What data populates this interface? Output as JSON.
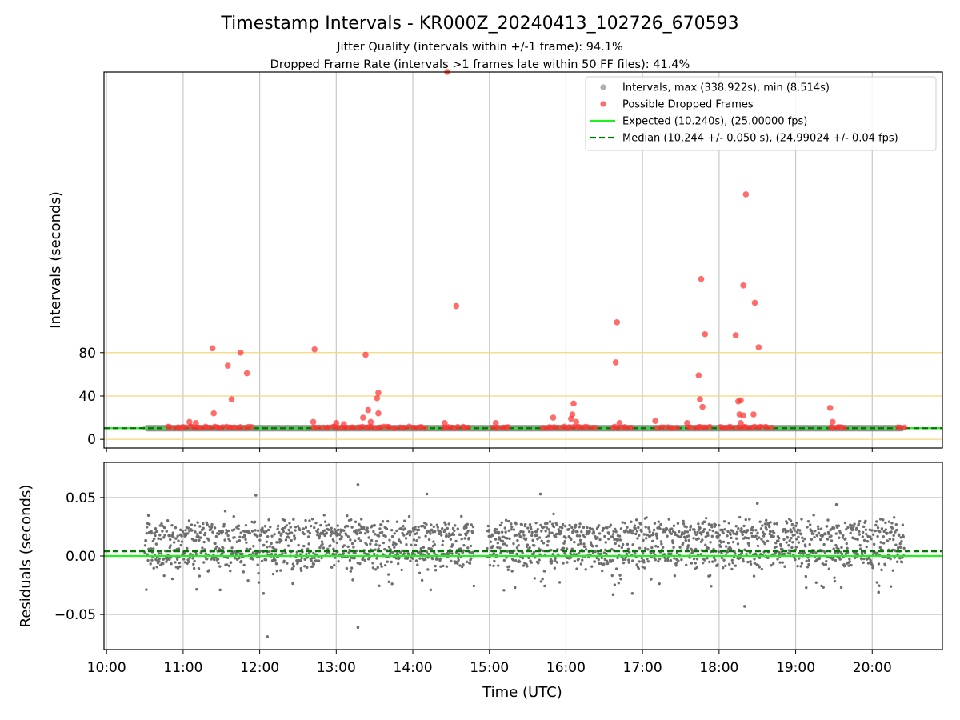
{
  "chart_data": [
    {
      "type": "scatter",
      "title": "Timestamp Intervals - KR000Z_20240413_102726_670593",
      "subtitle_lines": [
        "Jitter Quality (intervals within +/-1 frame): 94.1%",
        "Dropped Frame Rate (intervals >1 frames late within 50 FF files): 41.4%"
      ],
      "ylabel": "Intervals (seconds)",
      "x_axis": {
        "type": "time",
        "range": [
          "09:58",
          "20:55"
        ],
        "ticks": [
          "10:00",
          "11:00",
          "12:00",
          "13:00",
          "14:00",
          "15:00",
          "16:00",
          "17:00",
          "18:00",
          "19:00",
          "20:00"
        ]
      },
      "ylim": [
        -8,
        338.9
      ],
      "yticks": [
        0,
        40,
        80
      ],
      "grid": "vertical",
      "threshold_lines": [
        0,
        40,
        80
      ],
      "threshold_color": "#f3d77e",
      "legend": {
        "placement": "upper right",
        "entries": [
          {
            "label": "Intervals, max (338.922s), min (8.514s)",
            "kind": "marker",
            "color": "#a0a0a0"
          },
          {
            "label": "Possible Dropped Frames",
            "kind": "marker",
            "color": "#ff5555"
          },
          {
            "label": "Expected (10.240s), (25.00000 fps)",
            "kind": "line",
            "color": "#22ee22"
          },
          {
            "label": "Median (10.244 +/- 0.050 s), (24.99024 +/- 0.04 fps)",
            "kind": "dashed",
            "color": "#007700"
          }
        ]
      },
      "expected": 10.24,
      "median": 10.244,
      "interval_series": {
        "name": "Intervals",
        "start": "10:30",
        "end": "20:25",
        "level": 10.24,
        "color": "#7a7a7a"
      },
      "dropped_frames": [
        {
          "t": "11:23",
          "v": 84
        },
        {
          "t": "11:35",
          "v": 68
        },
        {
          "t": "11:38",
          "v": 37
        },
        {
          "t": "11:45",
          "v": 80
        },
        {
          "t": "11:50",
          "v": 61
        },
        {
          "t": "11:24",
          "v": 24
        },
        {
          "t": "11:05",
          "v": 16
        },
        {
          "t": "11:10",
          "v": 15
        },
        {
          "t": "12:43",
          "v": 83
        },
        {
          "t": "12:42",
          "v": 16
        },
        {
          "t": "13:00",
          "v": 15
        },
        {
          "t": "13:06",
          "v": 14
        },
        {
          "t": "13:23",
          "v": 78
        },
        {
          "t": "13:25",
          "v": 27
        },
        {
          "t": "13:33",
          "v": 43
        },
        {
          "t": "13:32",
          "v": 38
        },
        {
          "t": "13:33",
          "v": 24
        },
        {
          "t": "13:21",
          "v": 20
        },
        {
          "t": "13:27",
          "v": 16
        },
        {
          "t": "14:27",
          "v": 338.9
        },
        {
          "t": "14:34",
          "v": 123
        },
        {
          "t": "14:25",
          "v": 15
        },
        {
          "t": "15:05",
          "v": 15
        },
        {
          "t": "15:50",
          "v": 20
        },
        {
          "t": "16:06",
          "v": 33
        },
        {
          "t": "16:05",
          "v": 23
        },
        {
          "t": "16:04",
          "v": 19
        },
        {
          "t": "16:08",
          "v": 16
        },
        {
          "t": "16:40",
          "v": 108
        },
        {
          "t": "16:39",
          "v": 71
        },
        {
          "t": "16:42",
          "v": 15
        },
        {
          "t": "17:10",
          "v": 17
        },
        {
          "t": "17:35",
          "v": 15
        },
        {
          "t": "17:46",
          "v": 148
        },
        {
          "t": "17:49",
          "v": 97
        },
        {
          "t": "17:44",
          "v": 59
        },
        {
          "t": "17:45",
          "v": 37
        },
        {
          "t": "17:47",
          "v": 30
        },
        {
          "t": "18:13",
          "v": 96
        },
        {
          "t": "18:21",
          "v": 226
        },
        {
          "t": "18:19",
          "v": 142
        },
        {
          "t": "18:28",
          "v": 126
        },
        {
          "t": "18:31",
          "v": 85
        },
        {
          "t": "18:15",
          "v": 35
        },
        {
          "t": "18:17",
          "v": 36
        },
        {
          "t": "18:16",
          "v": 23
        },
        {
          "t": "18:19",
          "v": 22
        },
        {
          "t": "18:27",
          "v": 23
        },
        {
          "t": "18:17",
          "v": 15
        },
        {
          "t": "19:27",
          "v": 29
        },
        {
          "t": "19:29",
          "v": 16
        }
      ]
    },
    {
      "type": "scatter",
      "ylabel": "Residuals (seconds)",
      "xlabel": "Time (UTC)",
      "x_axis": {
        "type": "time",
        "range": [
          "09:58",
          "20:55"
        ],
        "ticks": [
          "10:00",
          "11:00",
          "12:00",
          "13:00",
          "14:00",
          "15:00",
          "16:00",
          "17:00",
          "18:00",
          "19:00",
          "20:00"
        ]
      },
      "ylim": [
        -0.08,
        0.08
      ],
      "yticks": [
        0.05,
        0.0,
        -0.05
      ],
      "ytick_labels": [
        "0.05",
        "0.00",
        "−0.05"
      ],
      "grid": "both",
      "expected_residual": 0.0,
      "median_residual": 0.004,
      "band_levels": [
        0.02,
        0.0
      ],
      "points_color": "#6e6e6e",
      "outliers": [
        {
          "t": "12:06",
          "v": -0.069
        },
        {
          "t": "13:17",
          "v": -0.061
        },
        {
          "t": "13:17",
          "v": 0.061
        },
        {
          "t": "11:57",
          "v": 0.052
        },
        {
          "t": "14:11",
          "v": 0.053
        },
        {
          "t": "15:40",
          "v": 0.053
        },
        {
          "t": "18:20",
          "v": -0.043
        },
        {
          "t": "16:37",
          "v": -0.033
        },
        {
          "t": "16:52",
          "v": -0.032
        },
        {
          "t": "19:32",
          "v": 0.044
        },
        {
          "t": "18:30",
          "v": 0.045
        },
        {
          "t": "11:29",
          "v": -0.029
        },
        {
          "t": "20:05",
          "v": -0.031
        },
        {
          "t": "12:03",
          "v": -0.032
        }
      ]
    }
  ]
}
